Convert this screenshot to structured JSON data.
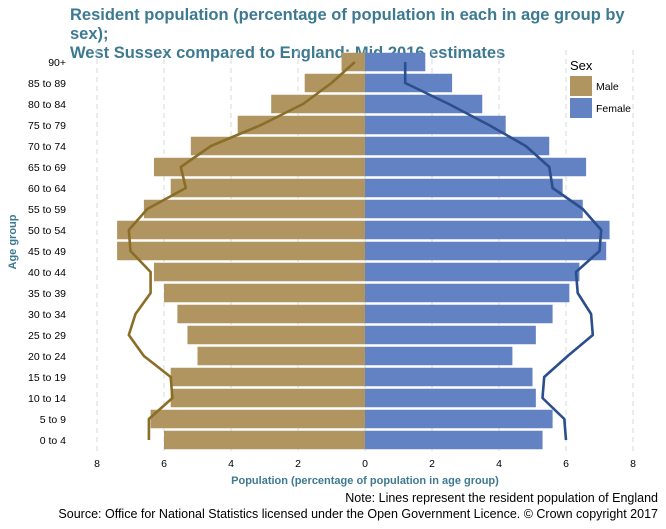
{
  "chart_data": {
    "type": "bar",
    "orientation": "horizontal-population-pyramid",
    "title_line1": "Resident population (percentage of population in each in age group by sex);",
    "title_line2": "West Sussex compared to England; Mid 2016 estimates",
    "xlabel": "Population (percentage of population in age group)",
    "ylabel": "Age group",
    "xlim": [
      -8,
      8
    ],
    "x_ticks": [
      "8",
      "6",
      "4",
      "2",
      "0",
      "2",
      "4",
      "6",
      "8"
    ],
    "grid": true,
    "legend_title": "Sex",
    "legend_placement": "top-right",
    "categories": [
      "0 to 4",
      "5 to 9",
      "10 to 14",
      "15 to 19",
      "20 to 24",
      "25 to 29",
      "30 to 34",
      "35 to 39",
      "40 to 44",
      "45 to 49",
      "50 to 54",
      "55 to 59",
      "60 to 64",
      "65 to 69",
      "70 to 74",
      "75 to 79",
      "80 to 84",
      "85 to 89",
      "90+"
    ],
    "series": [
      {
        "name": "Male",
        "color": "#b09560",
        "values": [
          6.0,
          6.4,
          5.8,
          5.8,
          5.0,
          5.3,
          5.6,
          6.0,
          6.3,
          7.4,
          7.4,
          6.6,
          5.8,
          6.3,
          5.2,
          3.8,
          2.8,
          1.8,
          0.7
        ]
      },
      {
        "name": "Female",
        "color": "#6382c4",
        "values": [
          5.3,
          5.6,
          5.1,
          5.0,
          4.4,
          5.1,
          5.6,
          6.1,
          6.4,
          7.2,
          7.3,
          6.5,
          5.9,
          6.6,
          5.5,
          4.2,
          3.5,
          2.6,
          1.8
        ]
      }
    ],
    "reference_lines": [
      {
        "name": "Male",
        "color": "#8a6e28",
        "values": [
          6.45,
          6.45,
          5.75,
          5.8,
          6.6,
          7.05,
          6.85,
          6.4,
          6.4,
          7.0,
          7.05,
          6.5,
          5.35,
          5.5,
          4.6,
          3.1,
          1.85,
          1.0,
          0.3
        ]
      },
      {
        "name": "Female",
        "color": "#2b4f8c",
        "values": [
          6.0,
          5.95,
          5.3,
          5.35,
          6.05,
          6.8,
          6.75,
          6.35,
          6.3,
          7.0,
          7.05,
          6.5,
          5.6,
          5.5,
          4.8,
          3.7,
          2.5,
          1.2,
          1.2
        ]
      }
    ]
  },
  "footer": {
    "note": "Note: Lines represent the resident population of England",
    "source": "Source: Office for National Statistics licensed under the Open Government Licence. © Crown copyright 2017"
  }
}
